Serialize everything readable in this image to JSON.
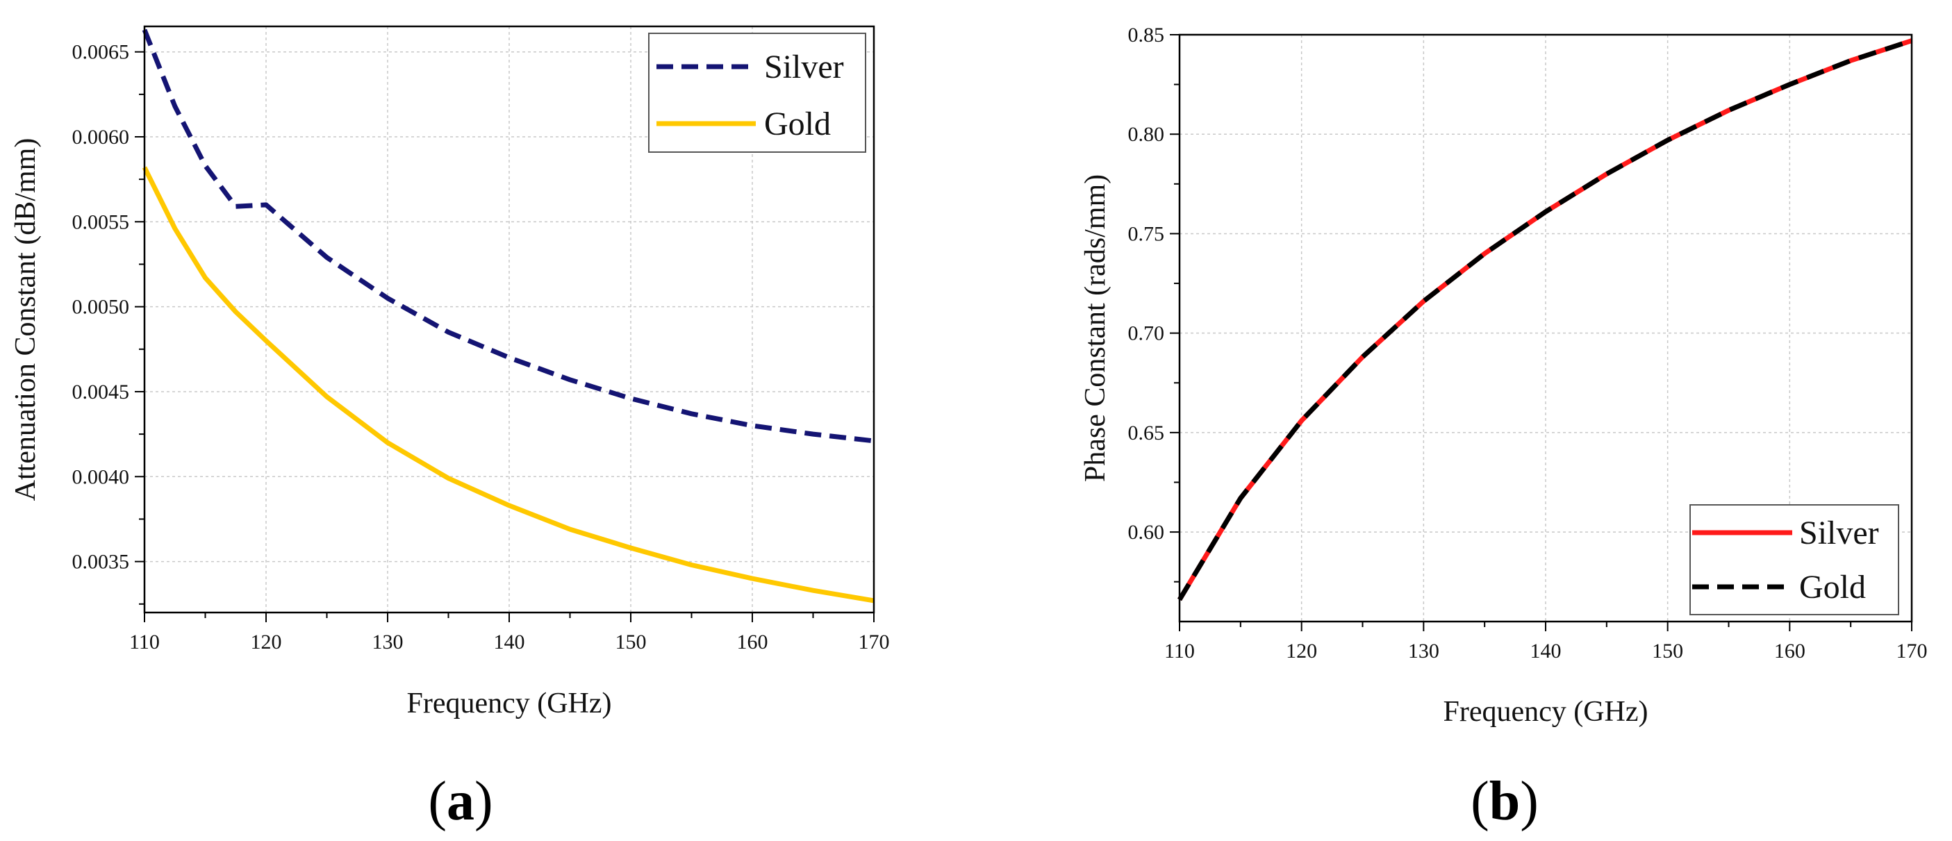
{
  "chart_data": [
    {
      "type": "line",
      "panel_label_prefix": "(",
      "panel_label": "a",
      "panel_label_suffix": ")",
      "xlabel": "Frequency (GHz)",
      "ylabel": "Attenuation Constant (dB/mm)",
      "xlim": [
        110,
        170
      ],
      "ylim": [
        0.0032,
        0.00665
      ],
      "xticks": [
        110,
        120,
        130,
        140,
        150,
        160,
        170
      ],
      "yticks": [
        0.0035,
        0.004,
        0.0045,
        0.005,
        0.0055,
        0.006,
        0.0065
      ],
      "ytick_labels": [
        "0.0035",
        "0.0040",
        "0.0045",
        "0.0050",
        "0.0055",
        "0.0060",
        "0.0065"
      ],
      "grid": true,
      "legend_position": "top-right",
      "series": [
        {
          "name": "Silver",
          "color": "#141473",
          "style": "dashed",
          "x": [
            110,
            112.5,
            115,
            117.5,
            120,
            125,
            130,
            135,
            140,
            145,
            150,
            155,
            160,
            165,
            170
          ],
          "y": [
            0.00663,
            0.00618,
            0.00583,
            0.00559,
            0.0056,
            0.00529,
            0.00505,
            0.00485,
            0.0047,
            0.00457,
            0.00446,
            0.00437,
            0.0043,
            0.00425,
            0.00421
          ]
        },
        {
          "name": "Gold",
          "color": "#ffc800",
          "style": "solid",
          "x": [
            110,
            112.5,
            115,
            117.5,
            120,
            125,
            130,
            135,
            140,
            145,
            150,
            155,
            160,
            165,
            170
          ],
          "y": [
            0.00582,
            0.00546,
            0.00517,
            0.00497,
            0.0048,
            0.00447,
            0.0042,
            0.00399,
            0.00383,
            0.00369,
            0.00358,
            0.00348,
            0.0034,
            0.00333,
            0.00327
          ]
        }
      ]
    },
    {
      "type": "line",
      "panel_label_prefix": "(",
      "panel_label": "b",
      "panel_label_suffix": ")",
      "xlabel": "Frequency (GHz)",
      "ylabel": "Phase Constant (rads/mm)",
      "xlim": [
        110,
        170
      ],
      "ylim": [
        0.555,
        0.85
      ],
      "xticks": [
        110,
        120,
        130,
        140,
        150,
        160,
        170
      ],
      "yticks": [
        0.6,
        0.65,
        0.7,
        0.75,
        0.8,
        0.85
      ],
      "ytick_labels": [
        "0.60",
        "0.65",
        "0.70",
        "0.75",
        "0.80",
        "0.85"
      ],
      "grid": true,
      "legend_position": "bottom-right",
      "series": [
        {
          "name": "Silver",
          "color": "#ff1a1a",
          "style": "solid",
          "x": [
            110,
            115,
            120,
            125,
            130,
            135,
            140,
            145,
            150,
            155,
            160,
            165,
            170
          ],
          "y": [
            0.566,
            0.617,
            0.656,
            0.688,
            0.716,
            0.74,
            0.761,
            0.78,
            0.797,
            0.812,
            0.825,
            0.837,
            0.847
          ]
        },
        {
          "name": "Gold",
          "color": "#000000",
          "style": "dashed",
          "x": [
            110,
            115,
            120,
            125,
            130,
            135,
            140,
            145,
            150,
            155,
            160,
            165,
            170
          ],
          "y": [
            0.566,
            0.617,
            0.656,
            0.688,
            0.716,
            0.74,
            0.761,
            0.78,
            0.797,
            0.812,
            0.825,
            0.837,
            0.847
          ]
        }
      ]
    }
  ]
}
